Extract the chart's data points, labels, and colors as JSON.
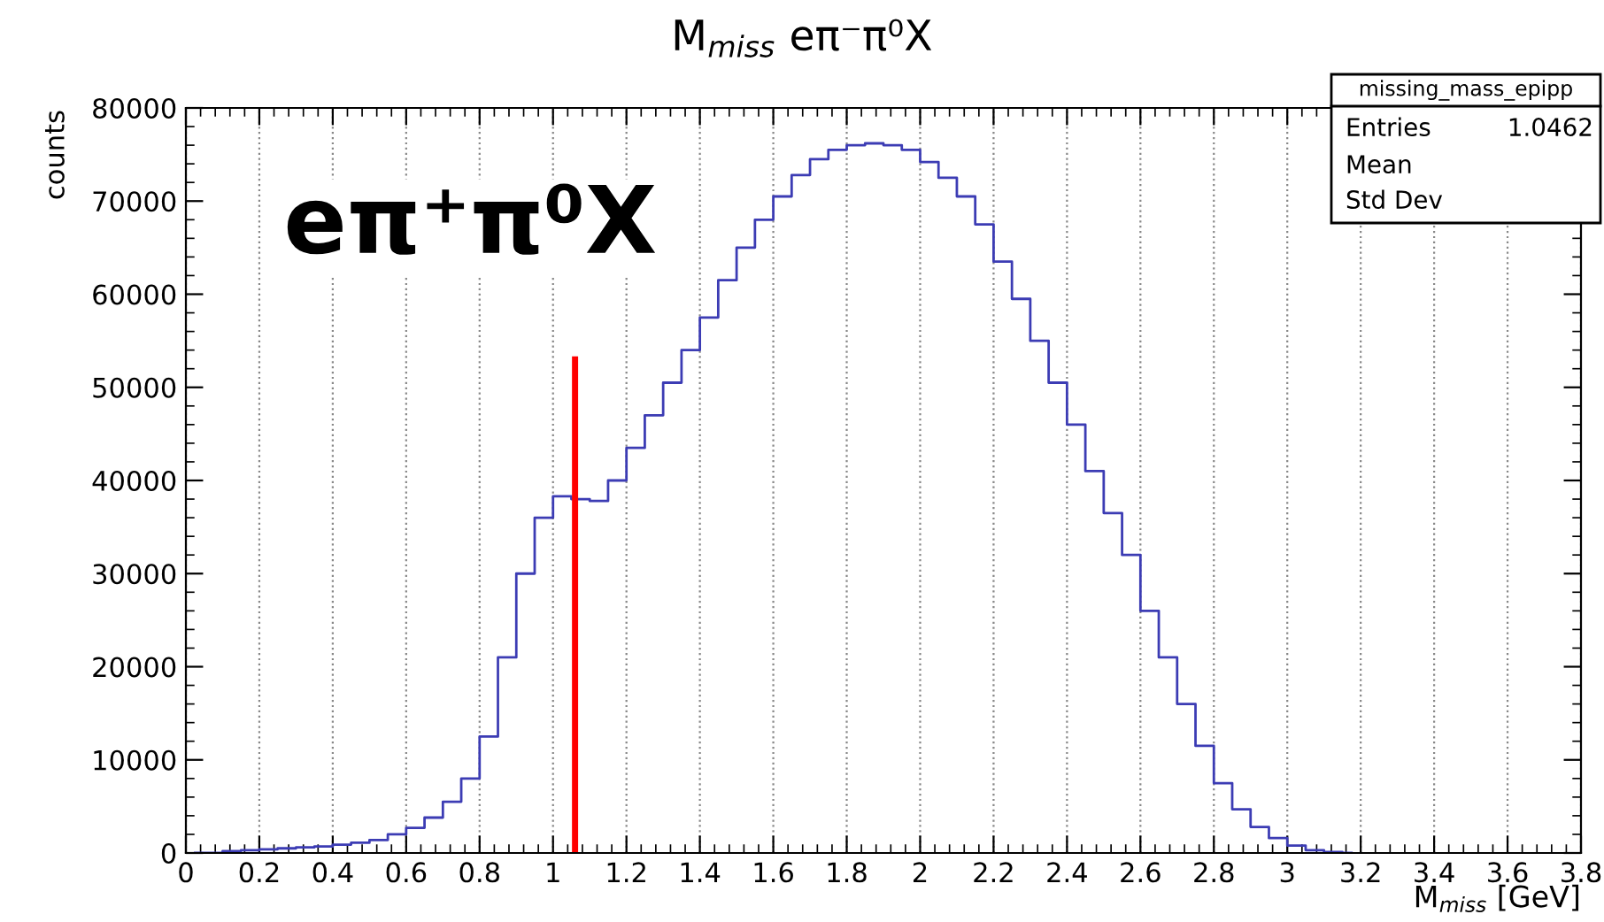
{
  "chart_data": {
    "type": "step",
    "title": "M$_{miss}$ eπ⁻π⁰X",
    "xlabel": "M$_{miss}$ [GeV]",
    "ylabel": "counts",
    "series": [
      {
        "color": "#3c3cb4",
        "x": [
          0.025,
          0.075,
          0.125,
          0.175,
          0.225,
          0.275,
          0.325,
          0.375,
          0.425,
          0.475,
          0.525,
          0.575,
          0.625,
          0.675,
          0.725,
          0.775,
          0.825,
          0.875,
          0.925,
          0.975,
          1.025,
          1.075,
          1.125,
          1.175,
          1.225,
          1.275,
          1.325,
          1.375,
          1.425,
          1.475,
          1.525,
          1.575,
          1.625,
          1.675,
          1.725,
          1.775,
          1.825,
          1.875,
          1.925,
          1.975,
          2.025,
          2.075,
          2.125,
          2.175,
          2.225,
          2.275,
          2.325,
          2.375,
          2.425,
          2.475,
          2.525,
          2.575,
          2.625,
          2.675,
          2.725,
          2.775,
          2.825,
          2.875,
          2.925,
          2.975,
          3.025,
          3.075,
          3.125,
          3.175
        ],
        "values": [
          0,
          0,
          200,
          300,
          400,
          500,
          600,
          700,
          900,
          1100,
          1400,
          2000,
          2700,
          3800,
          5500,
          8000,
          12500,
          21000,
          30000,
          36000,
          38300,
          38000,
          37800,
          40000,
          43500,
          47000,
          50500,
          54000,
          57500,
          61500,
          65000,
          68000,
          70500,
          72800,
          74500,
          75500,
          76000,
          76200,
          76000,
          75500,
          74200,
          72500,
          70500,
          67500,
          63500,
          59500,
          55000,
          50500,
          46000,
          41000,
          36500,
          32000,
          26000,
          21000,
          16000,
          11500,
          7500,
          4700,
          2800,
          1600,
          800,
          300,
          100,
          0
        ]
      },
      {
        "type": "line",
        "x": [
          1.06,
          1.06
        ],
        "values": [
          0,
          53000
        ],
        "color": "#ff0000"
      }
    ],
    "xlim": [
      0,
      3.8
    ],
    "xticks": [
      0,
      0.2,
      0.4,
      0.6,
      0.8,
      1,
      1.2,
      1.4,
      1.6,
      1.8,
      2,
      2.2,
      2.4,
      2.6,
      2.8,
      3,
      3.2,
      3.4,
      3.6,
      3.8
    ],
    "ylim": [
      0,
      80000
    ],
    "yticks": [
      0,
      10000,
      20000,
      30000,
      40000,
      50000,
      60000,
      70000,
      80000
    ],
    "grid": "x",
    "annotations": [
      "eπ⁺π⁰X",
      "missing_mass_epipp",
      "Entries",
      "1.0462",
      "Mean",
      "Std Dev"
    ]
  }
}
